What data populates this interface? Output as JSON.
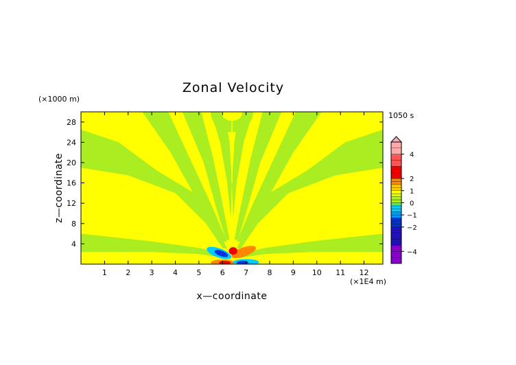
{
  "chart_data": {
    "type": "heatmap",
    "title": "Zonal Velocity",
    "xlabel": "x—coordinate",
    "ylabel": "z—coordinate",
    "x_unit": "(×1E4 m)",
    "y_unit": "(×1000 m)",
    "time_label": "1050 s",
    "xlim": [
      0,
      12.8
    ],
    "ylim": [
      0,
      30
    ],
    "x_ticks": [
      "1",
      "2",
      "3",
      "4",
      "5",
      "6",
      "7",
      "8",
      "9",
      "10",
      "11",
      "12"
    ],
    "y_ticks": [
      "4",
      "8",
      "12",
      "16",
      "20",
      "24",
      "28"
    ],
    "colorbar_ticks": [
      "4",
      "2",
      "1",
      "0",
      "−1",
      "−2",
      "−4"
    ],
    "colorbar_levels": [
      -5,
      -4.5,
      -4,
      -3.5,
      -3,
      -2.5,
      -2,
      -1.75,
      -1.5,
      -1.25,
      -1,
      -0.75,
      -0.5,
      -0.25,
      0,
      0.25,
      0.5,
      0.75,
      1,
      1.25,
      1.5,
      1.75,
      2,
      2.5,
      3,
      3.5,
      4,
      4.5,
      5
    ],
    "colors": {
      "yellow": "#ffff00",
      "green": "#aaee22",
      "cyan": "#00ccff",
      "blue": "#0033dd",
      "orange": "#ff8800",
      "red": "#ee0000",
      "pink": "#ffaaaa",
      "purple": "#8800cc"
    },
    "field_description_values": {
      "source_x": 6.4,
      "source_z": 0
    }
  }
}
